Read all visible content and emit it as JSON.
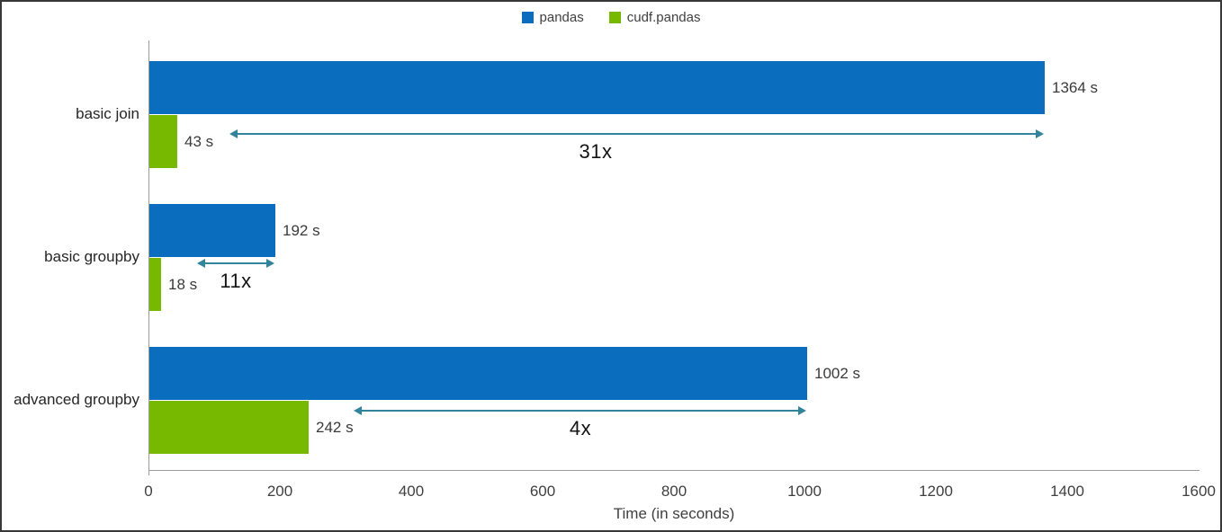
{
  "chart_data": {
    "type": "bar",
    "orientation": "horizontal",
    "title": "",
    "categories": [
      "basic join",
      "basic groupby",
      "advanced groupby"
    ],
    "series": [
      {
        "name": "pandas",
        "color": "#0a6dbd",
        "values": [
          1364,
          192,
          1002
        ],
        "value_labels": [
          "1364 s",
          "192 s",
          "1002 s"
        ]
      },
      {
        "name": "cudf.pandas",
        "color": "#76b900",
        "values": [
          43,
          18,
          242
        ],
        "value_labels": [
          "43 s",
          "18 s",
          "242 s"
        ]
      }
    ],
    "speedups": [
      {
        "category": "basic join",
        "ratio": 31,
        "label": "31x"
      },
      {
        "category": "basic groupby",
        "ratio": 11,
        "label": "11x"
      },
      {
        "category": "advanced groupby",
        "ratio": 4,
        "label": "4x"
      }
    ],
    "xlabel": "Time (in seconds)",
    "x_ticks": [
      0,
      200,
      400,
      600,
      800,
      1000,
      1200,
      1400,
      1600
    ],
    "xlim": [
      0,
      1600
    ],
    "arrow_color": "#31849b",
    "legend_position": "top",
    "grid": false
  }
}
